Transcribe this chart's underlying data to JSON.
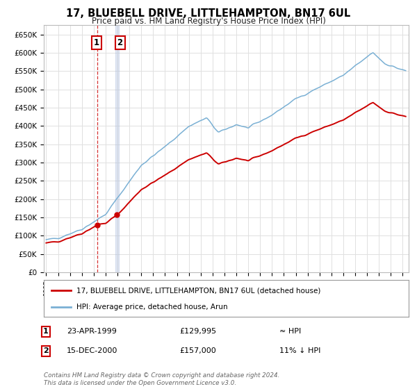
{
  "title": "17, BLUEBELL DRIVE, LITTLEHAMPTON, BN17 6UL",
  "subtitle": "Price paid vs. HM Land Registry's House Price Index (HPI)",
  "ylabel_ticks": [
    "£0",
    "£50K",
    "£100K",
    "£150K",
    "£200K",
    "£250K",
    "£300K",
    "£350K",
    "£400K",
    "£450K",
    "£500K",
    "£550K",
    "£600K",
    "£650K"
  ],
  "ylim": [
    0,
    675000
  ],
  "ytick_values": [
    0,
    50000,
    100000,
    150000,
    200000,
    250000,
    300000,
    350000,
    400000,
    450000,
    500000,
    550000,
    600000,
    650000
  ],
  "sale1_date": 1999.31,
  "sale1_price": 129995,
  "sale2_date": 2000.96,
  "sale2_price": 157000,
  "background_color": "#ffffff",
  "grid_color": "#e0e0e0",
  "red_line_color": "#cc0000",
  "blue_line_color": "#7ab0d4",
  "sale1_vline_color": "#cc0000",
  "sale2_vline_color": "#aabbdd",
  "legend_label_red": "17, BLUEBELL DRIVE, LITTLEHAMPTON, BN17 6UL (detached house)",
  "legend_label_blue": "HPI: Average price, detached house, Arun",
  "annotation1_label": "1",
  "annotation1_date": "23-APR-1999",
  "annotation1_price": "£129,995",
  "annotation1_hpi": "≈ HPI",
  "annotation2_label": "2",
  "annotation2_date": "15-DEC-2000",
  "annotation2_price": "£157,000",
  "annotation2_hpi": "11% ↓ HPI",
  "footer": "Contains HM Land Registry data © Crown copyright and database right 2024.\nThis data is licensed under the Open Government Licence v3.0.",
  "xlim_start": 1994.8,
  "xlim_end": 2025.5
}
